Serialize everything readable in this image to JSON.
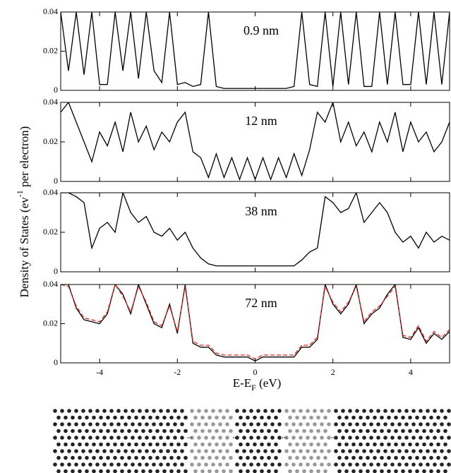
{
  "ylabel": {
    "text": "Density of States (ev",
    "sup": "-1",
    "rest": " per electron)"
  },
  "xlabel": {
    "text": "E-E",
    "sub": "F",
    "rest": " (eV)"
  },
  "chart_data": [
    {
      "type": "line",
      "label": "0.9 nm",
      "xlim": [
        -5,
        5
      ],
      "ylim": [
        0,
        0.04
      ],
      "yticks": [
        0,
        0.02,
        0.04
      ],
      "xticks": [
        -4,
        -2,
        0,
        2,
        4
      ],
      "x": [
        -5,
        -4.8,
        -4.6,
        -4.4,
        -4.2,
        -4,
        -3.8,
        -3.6,
        -3.4,
        -3.2,
        -3,
        -2.8,
        -2.6,
        -2.4,
        -2.2,
        -2,
        -1.8,
        -1.6,
        -1.4,
        -1.2,
        -1,
        -0.8,
        -0.6,
        -0.4,
        -0.2,
        0,
        0.2,
        0.4,
        0.6,
        0.8,
        1,
        1.2,
        1.4,
        1.6,
        1.8,
        2,
        2.2,
        2.4,
        2.6,
        2.8,
        3,
        3.2,
        3.4,
        3.6,
        3.8,
        4,
        4.2,
        4.4,
        4.6,
        4.8,
        5
      ],
      "series": [
        {
          "color": "#000000",
          "values": [
            0.04,
            0.01,
            0.04,
            0.008,
            0.04,
            0.003,
            0.003,
            0.04,
            0.01,
            0.04,
            0.006,
            0.04,
            0.01,
            0.004,
            0.04,
            0.003,
            0.004,
            0.002,
            0.003,
            0.04,
            0.002,
            0.001,
            0.001,
            0.001,
            0.001,
            0.001,
            0.001,
            0.001,
            0.001,
            0.001,
            0.002,
            0.04,
            0.003,
            0.002,
            0.04,
            0.002,
            0.04,
            0.003,
            0.04,
            0.002,
            0.002,
            0.04,
            0.003,
            0.04,
            0.003,
            0.003,
            0.04,
            0.003,
            0.04,
            0.003,
            0.04
          ]
        }
      ]
    },
    {
      "type": "line",
      "label": "12 nm",
      "xlim": [
        -5,
        5
      ],
      "ylim": [
        0,
        0.04
      ],
      "yticks": [
        0,
        0.02,
        0.04
      ],
      "xticks": [
        -4,
        -2,
        0,
        2,
        4
      ],
      "x": [
        -5,
        -4.8,
        -4.6,
        -4.4,
        -4.2,
        -4,
        -3.8,
        -3.6,
        -3.4,
        -3.2,
        -3,
        -2.8,
        -2.6,
        -2.4,
        -2.2,
        -2,
        -1.8,
        -1.6,
        -1.4,
        -1.2,
        -1,
        -0.8,
        -0.6,
        -0.4,
        -0.2,
        0,
        0.2,
        0.4,
        0.6,
        0.8,
        1,
        1.2,
        1.4,
        1.6,
        1.8,
        2,
        2.2,
        2.4,
        2.6,
        2.8,
        3,
        3.2,
        3.4,
        3.6,
        3.8,
        4,
        4.2,
        4.4,
        4.6,
        4.8,
        5
      ],
      "series": [
        {
          "color": "#000000",
          "values": [
            0.035,
            0.04,
            0.03,
            0.02,
            0.01,
            0.025,
            0.018,
            0.03,
            0.015,
            0.035,
            0.02,
            0.028,
            0.016,
            0.025,
            0.02,
            0.03,
            0.035,
            0.015,
            0.012,
            0.002,
            0.014,
            0.002,
            0.012,
            0.001,
            0.012,
            0.001,
            0.012,
            0.001,
            0.012,
            0.002,
            0.014,
            0.003,
            0.016,
            0.035,
            0.03,
            0.04,
            0.02,
            0.03,
            0.018,
            0.025,
            0.015,
            0.03,
            0.02,
            0.035,
            0.015,
            0.03,
            0.02,
            0.025,
            0.015,
            0.02,
            0.03
          ]
        }
      ]
    },
    {
      "type": "line",
      "label": "38 nm",
      "xlim": [
        -5,
        5
      ],
      "ylim": [
        0,
        0.04
      ],
      "yticks": [
        0,
        0.02,
        0.04
      ],
      "xticks": [
        -4,
        -2,
        0,
        2,
        4
      ],
      "x": [
        -5,
        -4.8,
        -4.6,
        -4.4,
        -4.2,
        -4,
        -3.8,
        -3.6,
        -3.4,
        -3.2,
        -3,
        -2.8,
        -2.6,
        -2.4,
        -2.2,
        -2,
        -1.8,
        -1.6,
        -1.4,
        -1.2,
        -1,
        -0.8,
        -0.6,
        -0.4,
        -0.2,
        0,
        0.2,
        0.4,
        0.6,
        0.8,
        1,
        1.2,
        1.4,
        1.6,
        1.8,
        2,
        2.2,
        2.4,
        2.6,
        2.8,
        3,
        3.2,
        3.4,
        3.6,
        3.8,
        4,
        4.2,
        4.4,
        4.6,
        4.8,
        5
      ],
      "series": [
        {
          "color": "#000000",
          "values": [
            0.04,
            0.04,
            0.038,
            0.035,
            0.012,
            0.022,
            0.025,
            0.02,
            0.04,
            0.03,
            0.025,
            0.028,
            0.02,
            0.018,
            0.022,
            0.016,
            0.02,
            0.012,
            0.007,
            0.004,
            0.003,
            0.003,
            0.003,
            0.003,
            0.003,
            0.003,
            0.003,
            0.003,
            0.003,
            0.003,
            0.003,
            0.006,
            0.01,
            0.012,
            0.038,
            0.035,
            0.03,
            0.032,
            0.04,
            0.025,
            0.03,
            0.035,
            0.03,
            0.02,
            0.015,
            0.018,
            0.012,
            0.02,
            0.015,
            0.018,
            0.016
          ]
        }
      ]
    },
    {
      "type": "line",
      "label": "72 nm",
      "xlim": [
        -5,
        5
      ],
      "ylim": [
        0,
        0.04
      ],
      "yticks": [
        0,
        0.02,
        0.04
      ],
      "xticks": [
        -4,
        -2,
        0,
        2,
        4
      ],
      "x": [
        -5,
        -4.8,
        -4.6,
        -4.4,
        -4.2,
        -4,
        -3.8,
        -3.6,
        -3.4,
        -3.2,
        -3,
        -2.8,
        -2.6,
        -2.4,
        -2.2,
        -2,
        -1.8,
        -1.6,
        -1.4,
        -1.2,
        -1,
        -0.8,
        -0.6,
        -0.4,
        -0.2,
        0,
        0.2,
        0.4,
        0.6,
        0.8,
        1,
        1.2,
        1.4,
        1.6,
        1.8,
        2,
        2.2,
        2.4,
        2.6,
        2.8,
        3,
        3.2,
        3.4,
        3.6,
        3.8,
        4,
        4.2,
        4.4,
        4.6,
        4.8,
        5
      ],
      "series": [
        {
          "color": "#000000",
          "linestyle": "solid",
          "values": [
            0.04,
            0.04,
            0.028,
            0.022,
            0.021,
            0.02,
            0.025,
            0.04,
            0.035,
            0.025,
            0.04,
            0.03,
            0.02,
            0.018,
            0.03,
            0.015,
            0.04,
            0.01,
            0.008,
            0.008,
            0.004,
            0.003,
            0.003,
            0.003,
            0.003,
            0.001,
            0.003,
            0.003,
            0.003,
            0.003,
            0.003,
            0.008,
            0.008,
            0.012,
            0.04,
            0.03,
            0.025,
            0.03,
            0.04,
            0.02,
            0.025,
            0.028,
            0.035,
            0.04,
            0.013,
            0.012,
            0.018,
            0.01,
            0.015,
            0.012,
            0.016
          ]
        },
        {
          "color": "#e0241c",
          "linestyle": "dashed",
          "values": [
            0.04,
            0.039,
            0.029,
            0.023,
            0.022,
            0.021,
            0.026,
            0.04,
            0.034,
            0.026,
            0.039,
            0.031,
            0.021,
            0.019,
            0.029,
            0.016,
            0.039,
            0.011,
            0.009,
            0.009,
            0.005,
            0.004,
            0.004,
            0.004,
            0.004,
            0.002,
            0.004,
            0.004,
            0.004,
            0.004,
            0.004,
            0.009,
            0.009,
            0.013,
            0.039,
            0.031,
            0.026,
            0.031,
            0.039,
            0.021,
            0.026,
            0.029,
            0.034,
            0.039,
            0.014,
            0.013,
            0.019,
            0.011,
            0.016,
            0.013,
            0.017
          ]
        }
      ]
    }
  ]
}
